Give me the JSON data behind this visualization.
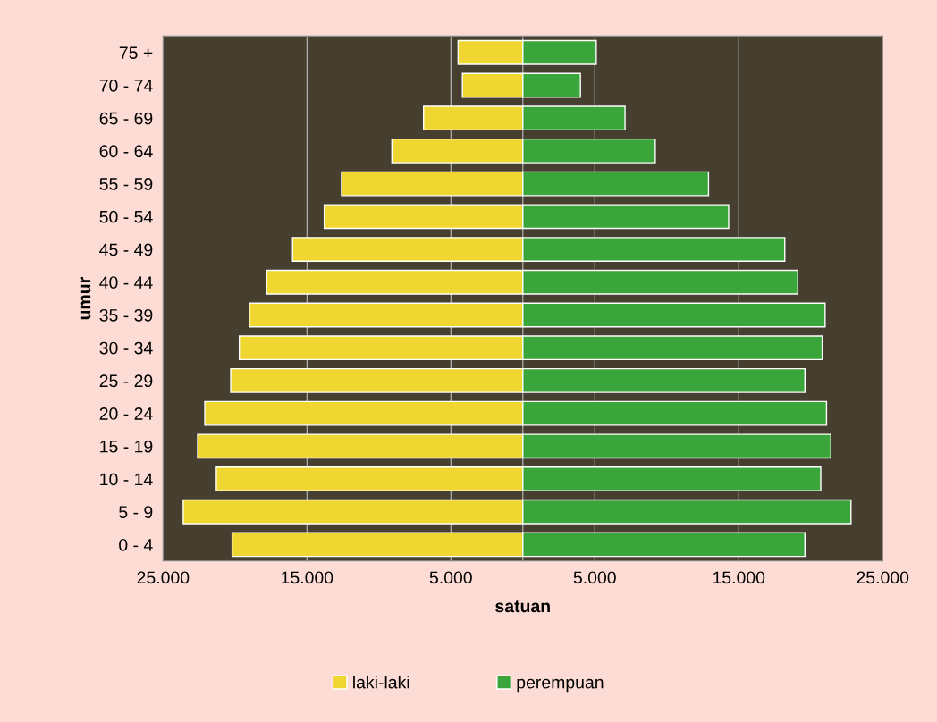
{
  "chart_data": {
    "type": "bar",
    "orientation": "horizontal",
    "xlabel": "satuan",
    "ylabel": "umur",
    "categories": [
      "75 +",
      "70 - 74",
      "65 - 69",
      "60 - 64",
      "55 - 59",
      "50 - 54",
      "45 - 49",
      "40 - 44",
      "35 - 39",
      "30 - 34",
      "25 - 29",
      "20 - 24",
      "15 - 19",
      "10 - 14",
      "5 - 9",
      "0 - 4"
    ],
    "series": [
      {
        "name": "laki-laki",
        "color": "#f0d630",
        "values": [
          -4500,
          -4200,
          -6900,
          -9100,
          -12600,
          -13800,
          -16000,
          -17800,
          -19000,
          -19700,
          -20300,
          -22100,
          -22600,
          -21300,
          -23600,
          -20200
        ]
      },
      {
        "name": "perempuan",
        "color": "#3aa53a",
        "values": [
          5100,
          4000,
          7100,
          9200,
          12900,
          14300,
          18200,
          19100,
          21000,
          20800,
          19600,
          21100,
          21400,
          20700,
          22800,
          19600
        ]
      }
    ],
    "xlim": [
      -25000,
      25000
    ],
    "xticks": [
      {
        "value": -25000,
        "label": "25.000"
      },
      {
        "value": -15000,
        "label": "15.000"
      },
      {
        "value": -5000,
        "label": "5.000"
      },
      {
        "value": 5000,
        "label": "5.000"
      },
      {
        "value": 15000,
        "label": "15.000"
      },
      {
        "value": 25000,
        "label": "25.000"
      }
    ],
    "grid": "x",
    "legend": "bottom",
    "stacked": true
  }
}
